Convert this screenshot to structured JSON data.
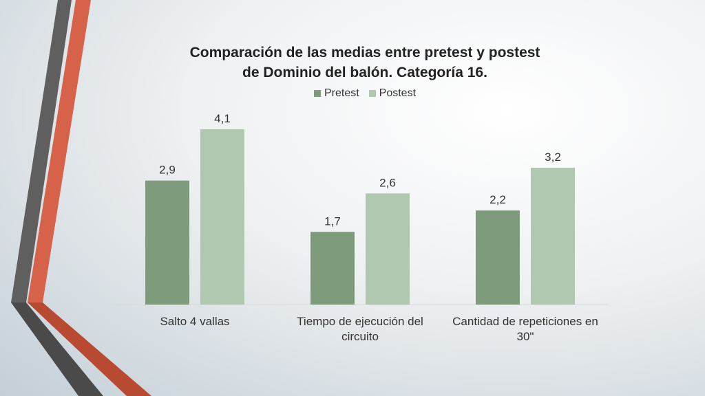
{
  "colors": {
    "pretest": "#7e9c7c",
    "postest": "#b0c8b0",
    "decor_gray": "#5a5a5a",
    "decor_orange": "#d6624a"
  },
  "chart_data": {
    "type": "bar",
    "title_lines": [
      "Comparación de las medias entre pretest y postest",
      "de Dominio del balón. Categoría 16."
    ],
    "categories": [
      [
        "Salto 4 vallas"
      ],
      [
        "Tiempo de ejecución del",
        "circuito"
      ],
      [
        "Cantidad de repeticiones en",
        "30\""
      ]
    ],
    "series": [
      {
        "name": "Pretest",
        "values": [
          2.9,
          1.7,
          2.2
        ],
        "labels": [
          "2,9",
          "1,7",
          "2,2"
        ]
      },
      {
        "name": "Postest",
        "values": [
          4.1,
          2.6,
          3.2
        ],
        "labels": [
          "4,1",
          "2,6",
          "3,2"
        ]
      }
    ],
    "ylim": [
      0,
      4.1
    ],
    "legend_position": "top",
    "grid": false
  }
}
